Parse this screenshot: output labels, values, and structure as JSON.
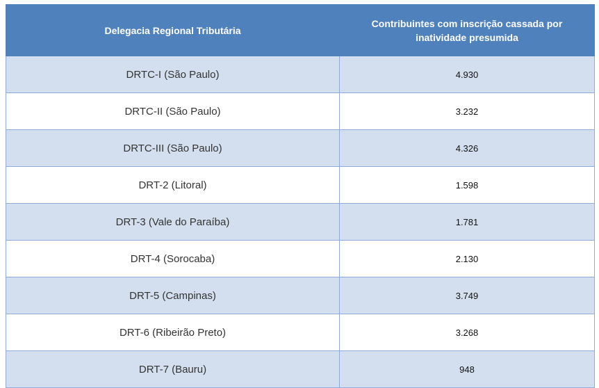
{
  "table": {
    "headers": [
      "Delegacia Regional Tributária",
      "Contribuintes com inscrição cassada por inatividade presumida"
    ],
    "rows": [
      {
        "region": "DRTC-I (São Paulo)",
        "value": "4.930"
      },
      {
        "region": "DRTC-II (São Paulo)",
        "value": "3.232"
      },
      {
        "region": "DRTC-III (São Paulo)",
        "value": "4.326"
      },
      {
        "region": "DRT-2 (Litoral)",
        "value": "1.598"
      },
      {
        "region": "DRT-3 (Vale do Paraíba)",
        "value": "1.781"
      },
      {
        "region": "DRT-4 (Sorocaba)",
        "value": "2.130"
      },
      {
        "region": "DRT-5 (Campinas)",
        "value": "3.749"
      },
      {
        "region": "DRT-6 (Ribeirão Preto)",
        "value": "3.268"
      },
      {
        "region": "DRT-7 (Bauru)",
        "value": "948"
      }
    ]
  },
  "colors": {
    "header_bg": "#4f81bd",
    "row_band": "#d3dfee",
    "row_plain": "#ffffff",
    "border": "#8eaadb"
  }
}
